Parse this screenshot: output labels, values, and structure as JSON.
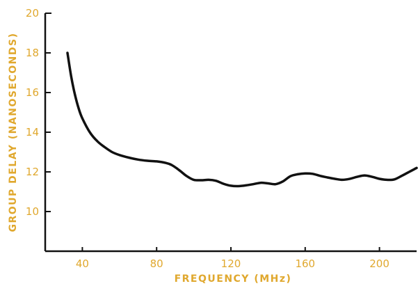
{
  "chart_data": {
    "type": "line",
    "title": "",
    "xlabel": "FREQUENCY (MHz)",
    "ylabel": "GROUP DELAY (NANOSECONDS)",
    "xlim": [
      20,
      220
    ],
    "ylim": [
      8,
      20
    ],
    "x_ticks": [
      40,
      80,
      120,
      160,
      200
    ],
    "x_tick_labels": [
      "40",
      "80",
      "120",
      "160",
      "200"
    ],
    "y_ticks": [
      10,
      12,
      14,
      16,
      18,
      20
    ],
    "y_tick_labels": [
      "10",
      "12",
      "14",
      "16",
      "18",
      "20"
    ],
    "grid": false,
    "colors": {
      "line": "#111111",
      "axis": "#111111",
      "labels": "#e0a82e"
    },
    "series": [
      {
        "x": [
          32,
          34,
          36,
          38,
          40,
          44,
          48,
          52,
          56,
          60,
          65,
          70,
          75,
          80,
          85,
          88,
          92,
          96,
          100,
          104,
          108,
          112,
          116,
          120,
          124,
          128,
          132,
          136,
          140,
          144,
          148,
          152,
          156,
          160,
          164,
          168,
          172,
          176,
          180,
          184,
          188,
          192,
          196,
          200,
          204,
          208,
          212,
          216,
          220
        ],
        "values": [
          18.0,
          16.8,
          15.9,
          15.2,
          14.7,
          14.0,
          13.55,
          13.25,
          13.0,
          12.85,
          12.72,
          12.62,
          12.56,
          12.53,
          12.45,
          12.35,
          12.1,
          11.8,
          11.6,
          11.58,
          11.6,
          11.55,
          11.4,
          11.3,
          11.28,
          11.32,
          11.38,
          11.45,
          11.42,
          11.38,
          11.52,
          11.78,
          11.88,
          11.92,
          11.9,
          11.8,
          11.72,
          11.65,
          11.6,
          11.65,
          11.75,
          11.82,
          11.75,
          11.65,
          11.6,
          11.62,
          11.8,
          12.0,
          12.2
        ]
      }
    ]
  }
}
